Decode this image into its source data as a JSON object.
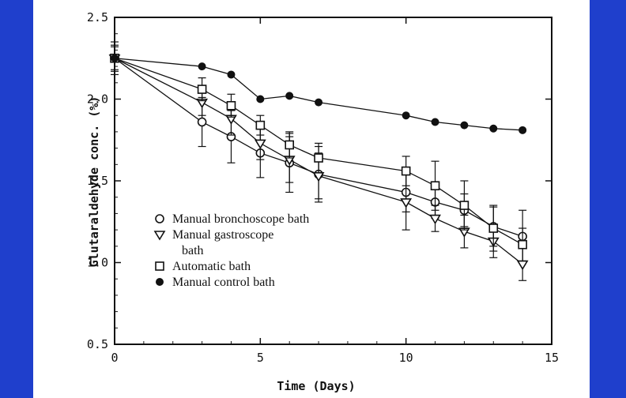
{
  "colors": {
    "slide_background": "#1f3fcc",
    "panel_background": "#ffffff",
    "ink": "#111111"
  },
  "chart_data": {
    "type": "line",
    "title": "",
    "xlabel": "Time (Days)",
    "ylabel": "Glutaraldehyde conc. (%)",
    "xlim": [
      0,
      15
    ],
    "ylim": [
      0.5,
      2.5
    ],
    "xticks": [
      0,
      5,
      10,
      15
    ],
    "xtick_labels": [
      "0",
      "5",
      "10",
      "15"
    ],
    "yticks": [
      0.5,
      1.0,
      1.5,
      2.0,
      2.5
    ],
    "ytick_labels": [
      "0.5",
      "1.0",
      "1.5",
      "2.0",
      "2.5"
    ],
    "grid": false,
    "legend_position": "lower-left",
    "series": [
      {
        "name": "Manual bronchoscope bath",
        "legend_lines": [
          "Manual bronchoscope bath"
        ],
        "marker": "circle-open",
        "x": [
          0,
          3,
          4,
          5,
          6,
          7,
          10,
          11,
          12,
          13,
          14
        ],
        "y": [
          2.25,
          1.86,
          1.77,
          1.67,
          1.61,
          1.54,
          1.43,
          1.37,
          1.32,
          1.22,
          1.16
        ],
        "err": [
          0.1,
          0.15,
          0.16,
          0.15,
          0.18,
          0.17,
          0.12,
          0.1,
          0.1,
          0.12,
          0.16
        ]
      },
      {
        "name": "Manual gastroscope bath",
        "legend_lines": [
          "Manual gastroscope",
          "bath"
        ],
        "marker": "triangle-down-open",
        "x": [
          0,
          3,
          4,
          5,
          6,
          7,
          10,
          11,
          12,
          13,
          14
        ],
        "y": [
          2.25,
          1.98,
          1.88,
          1.73,
          1.63,
          1.53,
          1.37,
          1.27,
          1.19,
          1.13,
          0.99
        ],
        "err": [
          0.07,
          0.08,
          0.1,
          0.1,
          0.14,
          0.14,
          0.17,
          0.08,
          0.1,
          0.1,
          0.1
        ]
      },
      {
        "name": "Automatic bath",
        "legend_lines": [
          "Automatic bath"
        ],
        "marker": "square-open",
        "x": [
          0,
          3,
          4,
          5,
          6,
          7,
          10,
          11,
          12,
          13,
          14
        ],
        "y": [
          2.25,
          2.06,
          1.96,
          1.84,
          1.72,
          1.64,
          1.56,
          1.47,
          1.35,
          1.21,
          1.11
        ],
        "err": [
          0.08,
          0.07,
          0.07,
          0.06,
          0.08,
          0.09,
          0.09,
          0.15,
          0.15,
          0.14,
          0.1
        ]
      },
      {
        "name": "Manual control bath",
        "legend_lines": [
          "Manual control bath"
        ],
        "marker": "circle-filled",
        "x": [
          0,
          3,
          4,
          5,
          6,
          7,
          10,
          11,
          12,
          13,
          14
        ],
        "y": [
          2.25,
          2.2,
          2.15,
          2.0,
          2.02,
          1.98,
          1.9,
          1.86,
          1.84,
          1.82,
          1.81
        ],
        "err": [
          0,
          0,
          0,
          0,
          0,
          0,
          0,
          0,
          0,
          0,
          0
        ]
      }
    ]
  }
}
